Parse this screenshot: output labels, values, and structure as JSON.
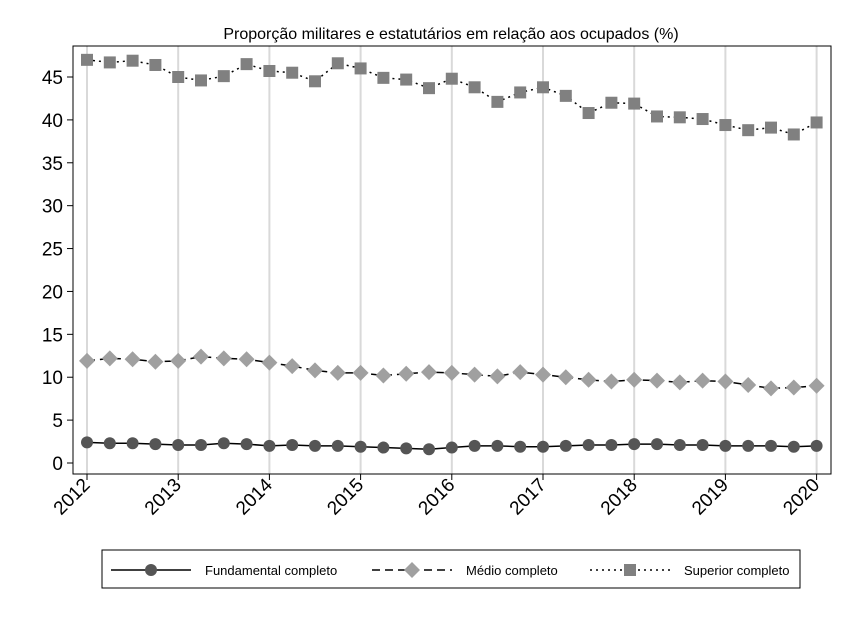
{
  "chart_data": {
    "type": "line",
    "title": "Proporção militares e estatutários em relação aos ocupados (%)",
    "xlabel": "",
    "ylabel": "",
    "ylim": [
      0,
      48
    ],
    "yticks": [
      0,
      5,
      10,
      15,
      20,
      25,
      30,
      35,
      40,
      45
    ],
    "xlim": [
      2011.95,
      2020.1
    ],
    "xticks": [
      2012,
      2013,
      2014,
      2015,
      2016,
      2017,
      2018,
      2019,
      2020
    ],
    "x_label_text": [
      "2012",
      "2013",
      "2014",
      "2015",
      "2016",
      "2017",
      "2018",
      "2019",
      "2020"
    ],
    "grid": "vertical",
    "legend_position": "bottom",
    "x": [
      2012.0,
      2012.25,
      2012.5,
      2012.75,
      2013.0,
      2013.25,
      2013.5,
      2013.75,
      2014.0,
      2014.25,
      2014.5,
      2014.75,
      2015.0,
      2015.25,
      2015.5,
      2015.75,
      2016.0,
      2016.25,
      2016.5,
      2016.75,
      2017.0,
      2017.25,
      2017.5,
      2017.75,
      2018.0,
      2018.25,
      2018.5,
      2018.75,
      2019.0,
      2019.25,
      2019.5,
      2019.75,
      2020.0
    ],
    "series": [
      {
        "name": "Fundamental completo",
        "marker": "circle",
        "line": "solid",
        "color": "#555555",
        "values": [
          2.4,
          2.3,
          2.3,
          2.2,
          2.1,
          2.1,
          2.3,
          2.2,
          2.0,
          2.1,
          2.0,
          2.0,
          1.9,
          1.8,
          1.7,
          1.6,
          1.8,
          2.0,
          2.0,
          1.9,
          1.9,
          2.0,
          2.1,
          2.1,
          2.2,
          2.2,
          2.1,
          2.1,
          2.0,
          2.0,
          2.0,
          1.9,
          2.0
        ]
      },
      {
        "name": "Médio completo",
        "marker": "diamond",
        "line": "dashed",
        "color": "#a0a0a0",
        "values": [
          11.9,
          12.2,
          12.1,
          11.8,
          11.9,
          12.4,
          12.2,
          12.1,
          11.7,
          11.3,
          10.8,
          10.5,
          10.5,
          10.2,
          10.4,
          10.6,
          10.5,
          10.3,
          10.1,
          10.6,
          10.3,
          10.0,
          9.7,
          9.5,
          9.7,
          9.6,
          9.4,
          9.6,
          9.5,
          9.1,
          8.7,
          8.8,
          9.0
        ]
      },
      {
        "name": "Superior completo",
        "marker": "square",
        "line": "dotted",
        "color": "#808080",
        "values": [
          47.0,
          46.7,
          46.9,
          46.4,
          45.0,
          44.6,
          45.1,
          46.5,
          45.7,
          45.5,
          44.5,
          46.6,
          46.0,
          44.9,
          44.7,
          43.7,
          44.8,
          43.8,
          42.1,
          43.2,
          43.8,
          42.8,
          40.8,
          42.0,
          41.9,
          40.4,
          40.3,
          40.1,
          39.4,
          38.8,
          39.1,
          38.3,
          39.7
        ]
      }
    ]
  }
}
